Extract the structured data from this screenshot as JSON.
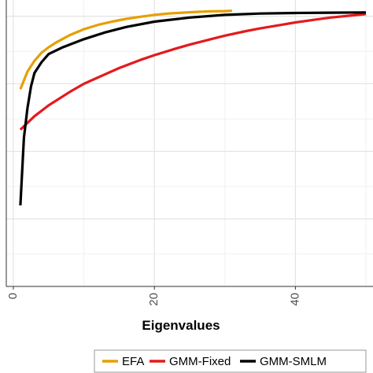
{
  "chart_data": {
    "type": "line",
    "title": "",
    "xlabel": "Eigenvalues",
    "ylabel": "",
    "xlim": [
      -1,
      51
    ],
    "ylim": [
      0,
      1.06
    ],
    "x_ticks": [
      0,
      20,
      40
    ],
    "x_tick_labels": [
      "0",
      "20",
      "40"
    ],
    "grid": true,
    "legend_position": "bottom",
    "series": [
      {
        "name": "EFA",
        "color": "#E69F00",
        "x": [
          1,
          2,
          3,
          4,
          5,
          6,
          8,
          10,
          12,
          14,
          16,
          18,
          20,
          22,
          24,
          26,
          28,
          30,
          31
        ],
        "y": [
          0.73,
          0.795,
          0.835,
          0.865,
          0.885,
          0.902,
          0.93,
          0.952,
          0.968,
          0.98,
          0.99,
          0.998,
          1.005,
          1.01,
          1.013,
          1.016,
          1.018,
          1.019,
          1.02
        ]
      },
      {
        "name": "GMM-Fixed",
        "color": "#E41A1C",
        "x": [
          1,
          3,
          5,
          8,
          10,
          13,
          15,
          18,
          20,
          23,
          25,
          28,
          30,
          33,
          35,
          38,
          40,
          43,
          45,
          48,
          50
        ],
        "y": [
          0.58,
          0.63,
          0.67,
          0.72,
          0.75,
          0.785,
          0.808,
          0.838,
          0.856,
          0.88,
          0.895,
          0.915,
          0.928,
          0.945,
          0.955,
          0.968,
          0.977,
          0.988,
          0.995,
          1.003,
          1.008
        ]
      },
      {
        "name": "GMM-SMLM",
        "color": "#000000",
        "x": [
          1,
          1.5,
          2,
          2.5,
          3,
          4,
          5,
          7,
          10,
          13,
          16,
          20,
          25,
          30,
          35,
          40,
          45,
          50
        ],
        "y": [
          0.3,
          0.55,
          0.66,
          0.74,
          0.79,
          0.83,
          0.86,
          0.885,
          0.915,
          0.94,
          0.96,
          0.98,
          0.995,
          1.005,
          1.01,
          1.012,
          1.013,
          1.014
        ]
      }
    ]
  }
}
